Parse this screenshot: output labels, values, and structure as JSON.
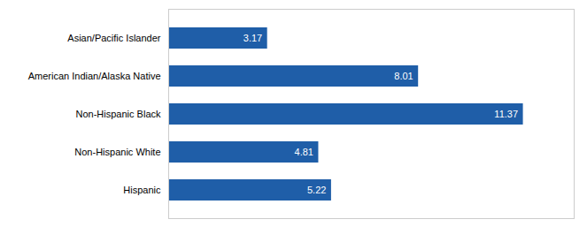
{
  "chart_data": {
    "type": "bar",
    "orientation": "horizontal",
    "categories": [
      "Asian/Pacific Islander",
      "American Indian/Alaska Native",
      "Non-Hispanic Black",
      "Non-Hispanic White",
      "Hispanic"
    ],
    "values": [
      3.17,
      8.01,
      11.37,
      4.81,
      5.22
    ],
    "color": "#1F5EA8",
    "xlim": [
      0,
      13
    ],
    "data_labels": true,
    "tick_labels": "y",
    "grid": false
  }
}
